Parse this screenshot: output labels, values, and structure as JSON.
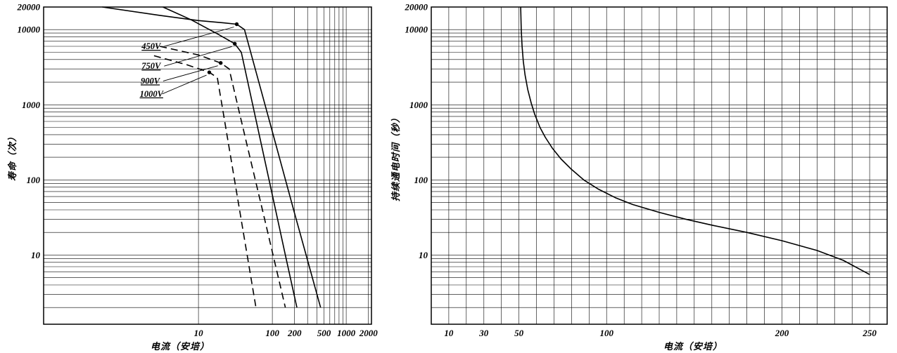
{
  "page": {
    "background": "#ffffff",
    "ink_color": "#000000"
  },
  "chart_data": [
    {
      "id": "life-vs-current",
      "type": "line",
      "title": "",
      "xlabel": "电流（安培）",
      "ylabel": "寿命（次）",
      "xscale": "log",
      "yscale": "log",
      "xlim": [
        0.08,
        2200
      ],
      "ylim": [
        1.2,
        20000
      ],
      "grid": true,
      "legend_position": "none",
      "x_ticks": [
        10,
        100,
        200,
        500,
        1000,
        2000
      ],
      "y_ticks": [
        10,
        100,
        1000,
        10000,
        20000
      ],
      "x_gridlines": [
        10,
        100,
        200,
        300,
        400,
        500,
        600,
        700,
        800,
        900,
        1000,
        2000
      ],
      "y_gridlines": [
        2,
        3,
        4,
        5,
        6,
        7,
        8,
        9,
        10,
        20,
        30,
        40,
        50,
        60,
        70,
        80,
        90,
        100,
        200,
        300,
        400,
        500,
        600,
        700,
        800,
        900,
        1000,
        2000,
        3000,
        4000,
        5000,
        6000,
        7000,
        8000,
        9000,
        10000,
        20000
      ],
      "series": [
        {
          "name": "450V",
          "line": "solid",
          "marker": [
            33,
            11800
          ],
          "points": [
            [
              0.5,
              20000
            ],
            [
              3,
              15500
            ],
            [
              10,
              13200
            ],
            [
              22,
              12300
            ],
            [
              33,
              11800
            ],
            [
              42,
              10000
            ],
            [
              50,
              5340
            ],
            [
              60,
              2770
            ],
            [
              100,
              440
            ],
            [
              140,
              131
            ],
            [
              200,
              36
            ],
            [
              300,
              8.5
            ],
            [
              450,
              2
            ]
          ]
        },
        {
          "name": "750V",
          "line": "solid",
          "marker": [
            31,
            6500
          ],
          "points": [
            [
              3.3,
              20000
            ],
            [
              8,
              13500
            ],
            [
              18,
              8800
            ],
            [
              31,
              6500
            ],
            [
              38,
              5000
            ],
            [
              45,
              2330
            ],
            [
              60,
              634
            ],
            [
              100,
              63
            ],
            [
              150,
              10
            ],
            [
              215,
              2
            ]
          ]
        },
        {
          "name": "900V",
          "line": "dashed",
          "marker": [
            20,
            3600
          ],
          "points": [
            [
              3,
              6000
            ],
            [
              10,
              4600
            ],
            [
              20,
              3600
            ],
            [
              26,
              3000
            ],
            [
              32,
              1260
            ],
            [
              45,
              303
            ],
            [
              80,
              28
            ],
            [
              110,
              7.4
            ],
            [
              150,
              2
            ]
          ]
        },
        {
          "name": "1000V",
          "line": "dashed",
          "marker": [
            14,
            2700
          ],
          "points": [
            [
              2.5,
              4500
            ],
            [
              7,
              3400
            ],
            [
              14,
              2700
            ],
            [
              18,
              2300
            ],
            [
              22,
              711
            ],
            [
              30,
              116
            ],
            [
              45,
              10.8
            ],
            [
              60,
              2
            ]
          ]
        }
      ],
      "annotations": [
        {
          "text": "450V",
          "pos": [
            1.7,
            5500
          ],
          "leader_to": [
            33,
            11800
          ]
        },
        {
          "text": "750V",
          "pos": [
            1.7,
            3000
          ],
          "leader_to": [
            31,
            6500
          ]
        },
        {
          "text": "900V",
          "pos": [
            1.65,
            1900
          ],
          "leader_to": [
            20,
            3600
          ]
        },
        {
          "text": "1000V",
          "pos": [
            1.6,
            1280
          ],
          "leader_to": [
            14,
            2700
          ]
        }
      ]
    },
    {
      "id": "energize-time-vs-current",
      "type": "line",
      "title": "",
      "xlabel": "电流（安培）",
      "ylabel": "持续通电时间（秒）",
      "xscale": "linear",
      "yscale": "log",
      "xlim": [
        0,
        260
      ],
      "ylim": [
        1.2,
        20000
      ],
      "grid": true,
      "legend_position": "none",
      "x_ticks": [
        10,
        30,
        50,
        100,
        200,
        250
      ],
      "y_ticks": [
        10,
        100,
        1000,
        10000,
        20000
      ],
      "x_gridlines": [
        10,
        20,
        30,
        40,
        50,
        60,
        70,
        80,
        90,
        100,
        110,
        120,
        130,
        140,
        150,
        160,
        170,
        180,
        190,
        200,
        210,
        220,
        230,
        240,
        250
      ],
      "y_gridlines": [
        2,
        3,
        4,
        5,
        6,
        7,
        8,
        9,
        10,
        20,
        30,
        40,
        50,
        60,
        70,
        80,
        90,
        100,
        200,
        300,
        400,
        500,
        600,
        700,
        800,
        900,
        1000,
        2000,
        3000,
        4000,
        5000,
        6000,
        7000,
        8000,
        9000,
        10000,
        20000
      ],
      "series": [
        {
          "name": "持续通电时间",
          "line": "solid",
          "points": [
            [
              51,
              20000
            ],
            [
              51.3,
              10000
            ],
            [
              51.8,
              6000
            ],
            [
              52.5,
              3800
            ],
            [
              53.5,
              2500
            ],
            [
              55,
              1600
            ],
            [
              57,
              1050
            ],
            [
              59,
              750
            ],
            [
              62,
              500
            ],
            [
              65,
              370
            ],
            [
              69,
              265
            ],
            [
              74,
              190
            ],
            [
              80,
              138
            ],
            [
              87,
              100
            ],
            [
              95,
              76
            ],
            [
              105,
              58
            ],
            [
              115,
              47
            ],
            [
              130,
              37
            ],
            [
              145,
              30
            ],
            [
              160,
              25
            ],
            [
              180,
              20
            ],
            [
              200,
              15.5
            ],
            [
              220,
              11.5
            ],
            [
              235,
              8.5
            ],
            [
              250,
              5.5
            ]
          ]
        }
      ],
      "annotations": []
    }
  ]
}
